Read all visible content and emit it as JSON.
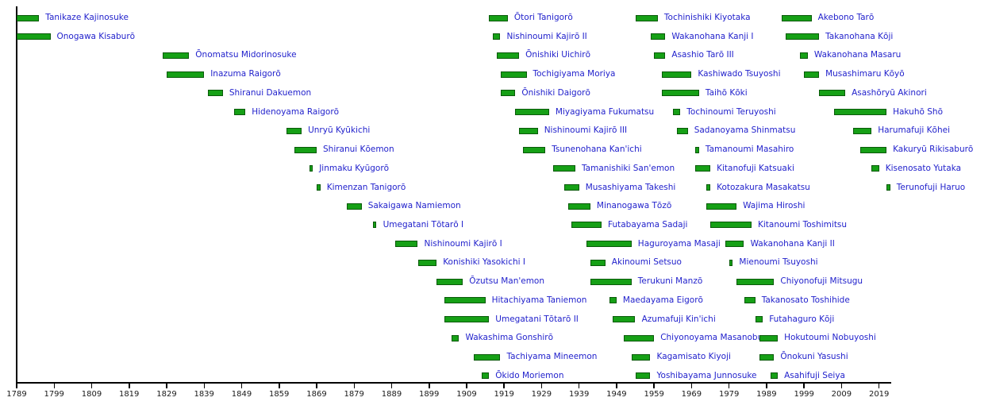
{
  "chart_data": {
    "type": "bar",
    "subtype": "timeline-gantt",
    "description_of_visible_content": "Horizontal timeline bars showing tenure periods of 70 sumo yokozuna, 20 rows wrapping into staggered columns, x-axis in years",
    "x_axis": {
      "tick_labels": [
        "1789",
        "1799",
        "1809",
        "1819",
        "1829",
        "1839",
        "1849",
        "1859",
        "1869",
        "1879",
        "1889",
        "1899",
        "1909",
        "1919",
        "1929",
        "1939",
        "1949",
        "1959",
        "1969",
        "1979",
        "1989",
        "1999",
        "2009",
        "2019"
      ],
      "domain_years": [
        1789,
        2022
      ],
      "tick_step_years": 10
    },
    "layout": {
      "rows_per_column": 20,
      "legend": "none",
      "grid": "off"
    },
    "colors": {
      "bar_fill": "#16a016",
      "bar_border": "#0a5a0a",
      "label_text": "#2222cc",
      "axis": "#000000",
      "tick_text": "#1a1a1a",
      "background": "#ffffff"
    },
    "series": [
      {
        "name": "Tanikaze Kajinosuke",
        "from": 1789,
        "till": 1795
      },
      {
        "name": "Onogawa Kisaburō",
        "from": 1789,
        "till": 1798
      },
      {
        "name": "Ōnomatsu Midorinosuke",
        "from": 1828,
        "till": 1835
      },
      {
        "name": "Inazuma Raigorō",
        "from": 1829,
        "till": 1839
      },
      {
        "name": "Shiranui Dakuemon",
        "from": 1840,
        "till": 1844
      },
      {
        "name": "Hidenoyama Raigorō",
        "from": 1847,
        "till": 1850
      },
      {
        "name": "Unryū Kyūkichi",
        "from": 1861,
        "till": 1865
      },
      {
        "name": "Shiranui Kōemon",
        "from": 1863,
        "till": 1869
      },
      {
        "name": "Jinmaku Kyūgorō",
        "from": 1867,
        "till": 1868
      },
      {
        "name": "Kimenzan Tanigorō",
        "from": 1869,
        "till": 1870
      },
      {
        "name": "Sakaigawa Namiemon",
        "from": 1877,
        "till": 1881
      },
      {
        "name": "Umegatani Tōtarō I",
        "from": 1884,
        "till": 1885
      },
      {
        "name": "Nishinoumi Kajirō I",
        "from": 1890,
        "till": 1896
      },
      {
        "name": "Konishiki Yasokichi I",
        "from": 1896,
        "till": 1901
      },
      {
        "name": "Ōzutsu Man'emon",
        "from": 1901,
        "till": 1908
      },
      {
        "name": "Hitachiyama Taniemon",
        "from": 1903,
        "till": 1914
      },
      {
        "name": "Umegatani Tōtarō II",
        "from": 1903,
        "till": 1915
      },
      {
        "name": "Wakashima Gonshirō",
        "from": 1905,
        "till": 1907
      },
      {
        "name": "Tachiyama Mineemon",
        "from": 1911,
        "till": 1918
      },
      {
        "name": "Ōkido Moriemon",
        "from": 1913,
        "till": 1915
      },
      {
        "name": "Ōtori Tanigorō",
        "from": 1915,
        "till": 1920
      },
      {
        "name": "Nishinoumi Kajirō II",
        "from": 1916,
        "till": 1918
      },
      {
        "name": "Ōnishiki Uichirō",
        "from": 1917,
        "till": 1923
      },
      {
        "name": "Tochigiyama Moriya",
        "from": 1918,
        "till": 1925
      },
      {
        "name": "Ōnishiki Daigorō",
        "from": 1918,
        "till": 1922
      },
      {
        "name": "Miyagiyama Fukumatsu",
        "from": 1922,
        "till": 1931
      },
      {
        "name": "Nishinoumi Kajirō III",
        "from": 1923,
        "till": 1928
      },
      {
        "name": "Tsunenohana Kan'ichi",
        "from": 1924,
        "till": 1930
      },
      {
        "name": "Tamanishiki San'emon",
        "from": 1932,
        "till": 1938
      },
      {
        "name": "Musashiyama Takeshi",
        "from": 1935,
        "till": 1939
      },
      {
        "name": "Minanogawa Tōzō",
        "from": 1936,
        "till": 1942
      },
      {
        "name": "Futabayama Sadaji",
        "from": 1937,
        "till": 1945
      },
      {
        "name": "Haguroyama Masaji",
        "from": 1941,
        "till": 1953
      },
      {
        "name": "Akinoumi Setsuo",
        "from": 1942,
        "till": 1946
      },
      {
        "name": "Terukuni Manzō",
        "from": 1942,
        "till": 1953
      },
      {
        "name": "Maedayama Eigorō",
        "from": 1947,
        "till": 1949
      },
      {
        "name": "Azumafuji Kin'ichi",
        "from": 1948,
        "till": 1954
      },
      {
        "name": "Chiyonoyama Masanobu",
        "from": 1951,
        "till": 1959
      },
      {
        "name": "Kagamisato Kiyoji",
        "from": 1953,
        "till": 1958
      },
      {
        "name": "Yoshibayama Junnosuke",
        "from": 1954,
        "till": 1958
      },
      {
        "name": "Tochinishiki Kiyotaka",
        "from": 1954,
        "till": 1960
      },
      {
        "name": "Wakanohana Kanji I",
        "from": 1958,
        "till": 1962
      },
      {
        "name": "Asashio Tarō III",
        "from": 1959,
        "till": 1962
      },
      {
        "name": "Kashiwado Tsuyoshi",
        "from": 1961,
        "till": 1969
      },
      {
        "name": "Taihō Kōki",
        "from": 1961,
        "till": 1971
      },
      {
        "name": "Tochinoumi Teruyoshi",
        "from": 1964,
        "till": 1966
      },
      {
        "name": "Sadanoyama Shinmatsu",
        "from": 1965,
        "till": 1968
      },
      {
        "name": "Tamanoumi Masahiro",
        "from": 1970,
        "till": 1971
      },
      {
        "name": "Kitanofuji Katsuaki",
        "from": 1970,
        "till": 1974
      },
      {
        "name": "Kotozakura Masakatsu",
        "from": 1973,
        "till": 1974
      },
      {
        "name": "Wajima Hiroshi",
        "from": 1973,
        "till": 1981
      },
      {
        "name": "Kitanoumi Toshimitsu",
        "from": 1974,
        "till": 1985
      },
      {
        "name": "Wakanohana Kanji II",
        "from": 1978,
        "till": 1983
      },
      {
        "name": "Mienoumi Tsuyoshi",
        "from": 1979,
        "till": 1980
      },
      {
        "name": "Chiyonofuji Mitsugu",
        "from": 1981,
        "till": 1991
      },
      {
        "name": "Takanosato Toshihide",
        "from": 1983,
        "till": 1986
      },
      {
        "name": "Futahaguro Kōji",
        "from": 1986,
        "till": 1988
      },
      {
        "name": "Hokutoumi Nobuyoshi",
        "from": 1987,
        "till": 1992
      },
      {
        "name": "Ōnokuni Yasushi",
        "from": 1987,
        "till": 1991
      },
      {
        "name": "Asahifuji Seiya",
        "from": 1990,
        "till": 1992
      },
      {
        "name": "Akebono Tarō",
        "from": 1993,
        "till": 2001
      },
      {
        "name": "Takanohana Kōji",
        "from": 1994,
        "till": 2003
      },
      {
        "name": "Wakanohana Masaru",
        "from": 1998,
        "till": 2000
      },
      {
        "name": "Musashimaru Kōyō",
        "from": 1999,
        "till": 2003
      },
      {
        "name": "Asashōryū Akinori",
        "from": 2003,
        "till": 2010
      },
      {
        "name": "Hakuhō Shō",
        "from": 2007,
        "till": 2021
      },
      {
        "name": "Harumafuji Kōhei",
        "from": 2012,
        "till": 2017
      },
      {
        "name": "Kakuryū Rikisaburō",
        "from": 2014,
        "till": 2021
      },
      {
        "name": "Kisenosato Yutaka",
        "from": 2017,
        "till": 2019
      },
      {
        "name": "Terunofuji Haruo",
        "from": 2021,
        "till": 2022
      }
    ]
  }
}
